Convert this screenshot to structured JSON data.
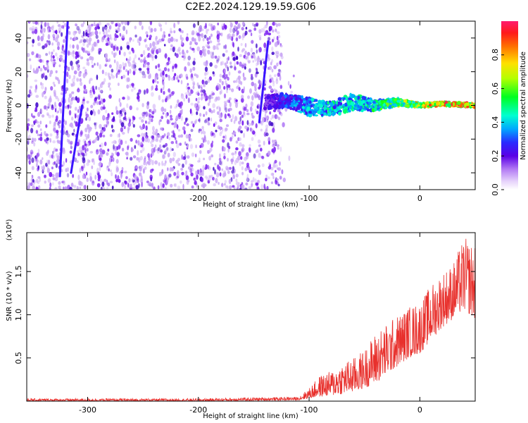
{
  "title": "C2E2.2024.129.19.59.G06",
  "colors": {
    "snr_line": "#e8302c",
    "scatter_bg": "#c9a6f5",
    "scatter_mid": "#7a1ff0",
    "scatter_dark": "#3a00c8"
  },
  "chart_data": [
    {
      "type": "heatmap",
      "title": "C2E2.2024.129.19.59.G06",
      "xlabel": "Height of straight line (km)",
      "ylabel": "Frequency (Hz)",
      "xlim": [
        -355,
        50
      ],
      "ylim": [
        -50,
        50
      ],
      "xticks": [
        -300,
        -200,
        -100,
        0
      ],
      "xtick_labels": [
        "-300",
        "-200",
        "-100",
        "0"
      ],
      "yticks": [
        -40,
        -20,
        0,
        20,
        40
      ],
      "ytick_labels": [
        "-40",
        "-20",
        "0",
        "20",
        "40"
      ],
      "colorbar": {
        "label": "Normalized spectral amplitude",
        "range": [
          0,
          1
        ],
        "ticks": [
          0.0,
          0.2,
          0.4,
          0.6,
          0.8
        ],
        "tick_labels": [
          "0.0",
          "0.2",
          "0.4",
          "0.6",
          "0.8"
        ]
      },
      "noise_region": {
        "x_from": -355,
        "x_to": -125,
        "freq_from": -50,
        "freq_to": 50,
        "amplitude": [
          0.05,
          0.2
        ]
      },
      "spurious_streaks": [
        {
          "x": [
            -325,
            -318
          ],
          "freq": [
            -42,
            50
          ]
        },
        {
          "x": [
            -315,
            -305
          ],
          "freq": [
            -40,
            0
          ]
        },
        {
          "x": [
            -145,
            -137
          ],
          "freq": [
            -10,
            38
          ]
        }
      ],
      "signal_band": {
        "x": [
          -140,
          -120,
          -100,
          -80,
          -60,
          -40,
          -20,
          0,
          20,
          50
        ],
        "center_freq": [
          2,
          3,
          -1,
          -2,
          2,
          0,
          2,
          0,
          1,
          0
        ],
        "halfwidth": [
          4,
          4,
          5,
          4,
          5,
          3,
          2,
          1,
          1,
          1
        ],
        "amplitude": [
          0.2,
          0.3,
          0.4,
          0.45,
          0.45,
          0.5,
          0.6,
          0.8,
          0.85,
          0.9
        ]
      }
    },
    {
      "type": "line",
      "xlabel": "Height of straight line (km)",
      "ylabel": "SNR (10 * v/v)",
      "y_multiplier": "(x10⁴)",
      "xlim": [
        -355,
        50
      ],
      "ylim": [
        0,
        1.95
      ],
      "xticks": [
        -300,
        -200,
        -100,
        0
      ],
      "xtick_labels": [
        "-300",
        "-200",
        "-100",
        "0"
      ],
      "yticks": [
        0.5,
        1.0,
        1.5
      ],
      "ytick_labels": [
        "0.5",
        "1.0",
        "1.5"
      ],
      "envelope": {
        "x": [
          -355,
          -200,
          -110,
          -100,
          -90,
          -80,
          -70,
          -60,
          -50,
          -40,
          -30,
          -20,
          -10,
          0,
          10,
          20,
          30,
          40,
          50
        ],
        "y_min": [
          0.0,
          0.0,
          0.01,
          0.03,
          0.05,
          0.06,
          0.08,
          0.1,
          0.15,
          0.2,
          0.3,
          0.4,
          0.5,
          0.55,
          0.7,
          0.85,
          0.95,
          1.05,
          0.95
        ],
        "y_max": [
          0.03,
          0.03,
          0.05,
          0.15,
          0.3,
          0.35,
          0.45,
          0.5,
          0.6,
          0.8,
          0.9,
          1.0,
          1.1,
          1.15,
          1.35,
          1.5,
          1.6,
          1.9,
          1.8
        ]
      }
    }
  ]
}
